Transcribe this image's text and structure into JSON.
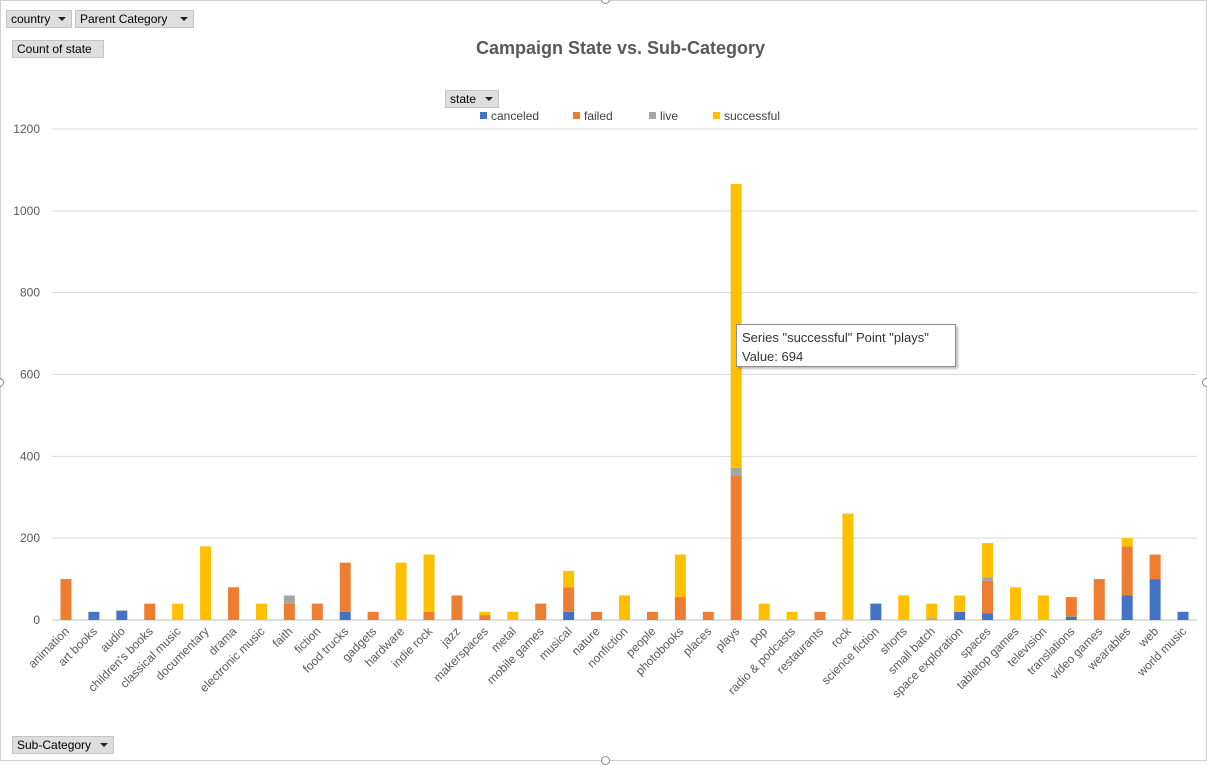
{
  "filters": {
    "country": "country",
    "parent_category": "Parent Category",
    "values_field": "Count of state",
    "legend_field": "state",
    "axis_field": "Sub-Category"
  },
  "tooltip": {
    "line1": "Series \"successful\" Point \"plays\"",
    "line2": "Value: 694"
  },
  "chart_data": {
    "type": "bar",
    "stacked": true,
    "title": "Campaign State vs. Sub-Category",
    "xlabel": "",
    "ylabel": "",
    "ylim": [
      0,
      1200
    ],
    "yticks": [
      "0",
      "200",
      "400",
      "600",
      "800",
      "1000",
      "1200"
    ],
    "grid": true,
    "legend_position": "top",
    "categories": [
      "animation",
      "art books",
      "audio",
      "children's books",
      "classical music",
      "documentary",
      "drama",
      "electronic music",
      "faith",
      "fiction",
      "food trucks",
      "gadgets",
      "hardware",
      "indie rock",
      "jazz",
      "makerspaces",
      "metal",
      "mobile games",
      "musical",
      "nature",
      "nonfiction",
      "people",
      "photobooks",
      "places",
      "plays",
      "pop",
      "radio & podcasts",
      "restaurants",
      "rock",
      "science fiction",
      "shorts",
      "small batch",
      "space exploration",
      "spaces",
      "tabletop games",
      "television",
      "translations",
      "video games",
      "wearables",
      "web",
      "world music"
    ],
    "series": [
      {
        "name": "canceled",
        "color": "#4472c4",
        "values": [
          0,
          20,
          23,
          0,
          0,
          0,
          0,
          0,
          0,
          0,
          20,
          0,
          0,
          0,
          0,
          0,
          0,
          0,
          20,
          0,
          0,
          0,
          0,
          0,
          0,
          0,
          0,
          0,
          0,
          40,
          0,
          0,
          20,
          16,
          0,
          0,
          8,
          0,
          60,
          100,
          20
        ]
      },
      {
        "name": "failed",
        "color": "#ed7d31",
        "values": [
          100,
          0,
          0,
          40,
          0,
          0,
          80,
          0,
          40,
          40,
          120,
          20,
          0,
          20,
          60,
          12,
          0,
          40,
          60,
          20,
          0,
          20,
          56,
          20,
          352,
          0,
          0,
          20,
          0,
          0,
          0,
          0,
          0,
          80,
          0,
          0,
          48,
          100,
          120,
          60,
          0
        ]
      },
      {
        "name": "live",
        "color": "#a5a5a5",
        "values": [
          0,
          0,
          0,
          0,
          0,
          0,
          0,
          0,
          20,
          0,
          0,
          0,
          0,
          0,
          0,
          0,
          0,
          0,
          0,
          0,
          0,
          0,
          0,
          0,
          20,
          0,
          0,
          0,
          0,
          0,
          0,
          4,
          0,
          8,
          0,
          0,
          0,
          0,
          0,
          0,
          0
        ]
      },
      {
        "name": "successful",
        "color": "#ffc000",
        "values": [
          0,
          0,
          0,
          0,
          40,
          180,
          0,
          40,
          0,
          0,
          0,
          0,
          140,
          140,
          0,
          8,
          20,
          0,
          40,
          0,
          60,
          0,
          104,
          0,
          694,
          40,
          20,
          0,
          260,
          0,
          60,
          36,
          40,
          84,
          80,
          60,
          0,
          0,
          20,
          0,
          0
        ]
      }
    ]
  }
}
